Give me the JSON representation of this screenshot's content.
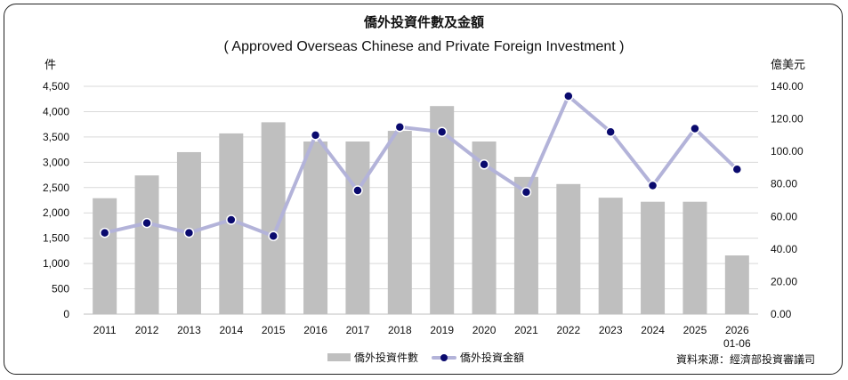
{
  "chart_data": {
    "type": "bar+line",
    "title": "僑外投資件數及金額",
    "subtitle": "( Approved Overseas Chinese and Private Foreign Investment )",
    "ylabel_left": "件",
    "ylabel_right": "億美元",
    "categories": [
      "2011",
      "2012",
      "2013",
      "2014",
      "2015",
      "2016",
      "2017",
      "2018",
      "2019",
      "2020",
      "2021",
      "2022",
      "2023",
      "2024",
      "2025",
      "2026\n01-06"
    ],
    "left_ticks": [
      "0",
      "500",
      "1,000",
      "1,500",
      "2,000",
      "2,500",
      "3,000",
      "3,500",
      "4,000",
      "4,500"
    ],
    "right_ticks": [
      "0.00",
      "20.00",
      "40.00",
      "60.00",
      "80.00",
      "100.00",
      "120.00",
      "140.00"
    ],
    "ylim_left": [
      0,
      4500
    ],
    "ylim_right": [
      0,
      140
    ],
    "series": [
      {
        "name": "僑外投資件數",
        "type": "bar",
        "axis": "left",
        "color": "#bfbfbf",
        "values": [
          2290,
          2740,
          3200,
          3570,
          3790,
          3410,
          3410,
          3620,
          4110,
          3410,
          2710,
          2570,
          2300,
          2220,
          2220,
          1160
        ]
      },
      {
        "name": "僑外投資金額",
        "type": "line",
        "axis": "right",
        "color": "#b3b3d9",
        "marker_color": "#0a0a6e",
        "values": [
          50.0,
          56.0,
          50.0,
          58.0,
          48.0,
          110.0,
          76.0,
          115.0,
          112.0,
          92.0,
          75.0,
          134.0,
          112.0,
          79.0,
          114.0,
          89.0
        ]
      }
    ],
    "grid": true,
    "legend_position": "bottom-center"
  },
  "source": "資料來源：經濟部投資審議司"
}
